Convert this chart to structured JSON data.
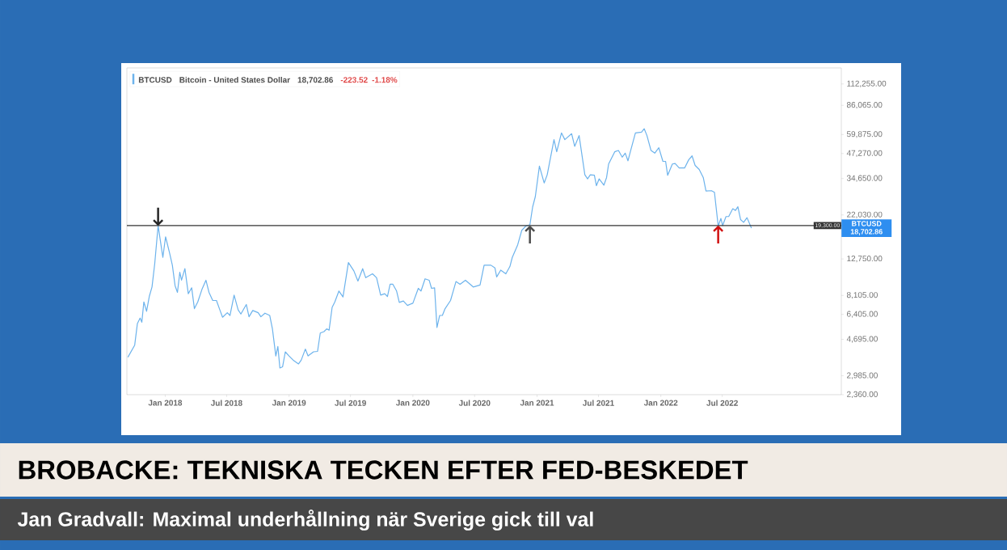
{
  "chart_data": {
    "type": "line",
    "title": "BROBACKE: TEKNISKA TECKEN EFTER FED-BESKEDET",
    "x": [
      "2017-09-13",
      "2017-10-03",
      "2017-10-11",
      "2017-10-19",
      "2017-10-24",
      "2017-10-30",
      "2017-11-07",
      "2017-11-15",
      "2017-11-23",
      "2017-12-01",
      "2017-12-11",
      "2017-12-25",
      "2018-01-02",
      "2018-01-14",
      "2018-01-22",
      "2018-01-30",
      "2018-02-06",
      "2018-02-13",
      "2018-02-18",
      "2018-02-28",
      "2018-03-10",
      "2018-03-20",
      "2018-03-28",
      "2018-04-07",
      "2018-04-19",
      "2018-05-01",
      "2018-05-10",
      "2018-05-21",
      "2018-06-01",
      "2018-06-11",
      "2018-06-19",
      "2018-07-03",
      "2018-07-11",
      "2018-07-23",
      "2018-08-04",
      "2018-08-12",
      "2018-08-28",
      "2018-09-05",
      "2018-09-16",
      "2018-10-02",
      "2018-10-10",
      "2018-10-22",
      "2018-11-05",
      "2018-11-13",
      "2018-11-23",
      "2018-11-29",
      "2018-12-05",
      "2018-12-13",
      "2018-12-21",
      "2019-01-01",
      "2019-01-13",
      "2019-01-29",
      "2019-02-06",
      "2019-02-18",
      "2019-02-26",
      "2019-03-14",
      "2019-03-26",
      "2019-04-03",
      "2019-04-14",
      "2019-04-22",
      "2019-04-29",
      "2019-05-08",
      "2019-05-16",
      "2019-05-28",
      "2019-06-09",
      "2019-06-25",
      "2019-07-11",
      "2019-07-23",
      "2019-08-06",
      "2019-08-15",
      "2019-09-04",
      "2019-09-16",
      "2019-09-28",
      "2019-10-10",
      "2019-10-18",
      "2019-10-26",
      "2019-11-03",
      "2019-11-14",
      "2019-11-22",
      "2019-12-04",
      "2019-12-16",
      "2020-01-01",
      "2020-01-17",
      "2020-01-25",
      "2020-02-06",
      "2020-02-18",
      "2020-02-25",
      "2020-03-05",
      "2020-03-12",
      "2020-03-20",
      "2020-03-28",
      "2020-04-05",
      "2020-04-21",
      "2020-04-29",
      "2020-05-07",
      "2020-05-19",
      "2020-06-04",
      "2020-06-27",
      "2020-07-17",
      "2020-07-29",
      "2020-08-18",
      "2020-08-30",
      "2020-09-04",
      "2020-09-16",
      "2020-10-01",
      "2020-10-13",
      "2020-10-20",
      "2020-11-05",
      "2020-11-17",
      "2020-11-29",
      "2020-12-11",
      "2020-12-19",
      "2020-12-27",
      "2021-01-08",
      "2021-01-22",
      "2021-01-31",
      "2021-02-20",
      "2021-02-28",
      "2021-03-14",
      "2021-03-24",
      "2021-04-13",
      "2021-04-22",
      "2021-05-05",
      "2021-05-22",
      "2021-05-30",
      "2021-06-07",
      "2021-06-19",
      "2021-06-25",
      "2021-07-03",
      "2021-07-17",
      "2021-07-25",
      "2021-07-31",
      "2021-08-18",
      "2021-08-29",
      "2021-09-09",
      "2021-09-18",
      "2021-09-26",
      "2021-10-04",
      "2021-10-18",
      "2021-11-05",
      "2021-11-13",
      "2021-11-21",
      "2021-12-03",
      "2021-12-14",
      "2021-12-26",
      "2022-01-07",
      "2022-01-15",
      "2022-01-21",
      "2022-02-04",
      "2022-02-12",
      "2022-02-24",
      "2022-03-12",
      "2022-03-24",
      "2022-04-03",
      "2022-04-12",
      "2022-04-24",
      "2022-05-06",
      "2022-05-14",
      "2022-05-30",
      "2022-06-08",
      "2022-06-19",
      "2022-06-27",
      "2022-07-02",
      "2022-07-12",
      "2022-07-20",
      "2022-08-01",
      "2022-08-09",
      "2022-08-16",
      "2022-08-24",
      "2022-09-02",
      "2022-09-12",
      "2022-09-25"
    ],
    "series": [
      {
        "name": "BTCUSD",
        "color": "#6db3ec",
        "values": [
          3760,
          4370,
          5720,
          6120,
          5810,
          7480,
          6650,
          8000,
          9000,
          12000,
          19300,
          13000,
          16800,
          13700,
          11800,
          9150,
          8420,
          10800,
          9790,
          11300,
          8280,
          8910,
          6880,
          7480,
          8710,
          9790,
          8420,
          7610,
          7610,
          6770,
          6180,
          6540,
          6320,
          8140,
          6770,
          6430,
          7240,
          6220,
          6720,
          6540,
          6220,
          6500,
          6320,
          5350,
          3820,
          4300,
          3290,
          3340,
          4020,
          3820,
          3630,
          3460,
          3630,
          4160,
          3820,
          4020,
          4040,
          5080,
          5170,
          5350,
          5260,
          6990,
          7480,
          8560,
          7950,
          12200,
          11000,
          9690,
          11300,
          10100,
          10600,
          10100,
          8140,
          8280,
          8000,
          9310,
          9310,
          8560,
          7430,
          7560,
          7160,
          7360,
          8850,
          8560,
          9960,
          9790,
          8850,
          8910,
          5440,
          6320,
          6320,
          6880,
          7610,
          8560,
          9630,
          9310,
          9790,
          9000,
          9220,
          11800,
          11800,
          11400,
          10200,
          11100,
          10600,
          11600,
          13000,
          15200,
          18200,
          19200,
          19500,
          24300,
          27700,
          40400,
          32800,
          36300,
          56200,
          48300,
          61100,
          56200,
          60500,
          51700,
          59100,
          36300,
          34500,
          36300,
          36100,
          31700,
          34500,
          31900,
          35100,
          41500,
          48300,
          49100,
          45200,
          47500,
          43200,
          49100,
          61100,
          61700,
          64300,
          59100,
          49100,
          47500,
          50800,
          42900,
          42900,
          36100,
          41500,
          41800,
          39500,
          39500,
          43700,
          45900,
          40800,
          38800,
          35100,
          29700,
          29800,
          29200,
          19200,
          21100,
          19300,
          21600,
          21600,
          23800,
          23300,
          24400,
          20800,
          20100,
          21300,
          18700
        ]
      }
    ],
    "xlim": [
      "2017-09-10",
      "2023-06-17"
    ],
    "ylim": [
      2360,
      137000
    ],
    "log": "y",
    "xticks": [
      {
        "value": "2018-01-01",
        "label": "Jan 2018"
      },
      {
        "value": "2018-07-01",
        "label": "Jul 2018"
      },
      {
        "value": "2019-01-01",
        "label": "Jan 2019"
      },
      {
        "value": "2019-07-01",
        "label": "Jul 2019"
      },
      {
        "value": "2020-01-01",
        "label": "Jan 2020"
      },
      {
        "value": "2020-07-01",
        "label": "Jul 2020"
      },
      {
        "value": "2021-01-01",
        "label": "Jan 2021"
      },
      {
        "value": "2021-07-01",
        "label": "Jul 2021"
      },
      {
        "value": "2022-01-01",
        "label": "Jan 2022"
      },
      {
        "value": "2022-07-01",
        "label": "Jul 2022"
      }
    ],
    "yticks": [
      {
        "value": 2360,
        "label": "2,360.00"
      },
      {
        "value": 2985,
        "label": "2,985.00"
      },
      {
        "value": 4695,
        "label": "4,695.00"
      },
      {
        "value": 6405,
        "label": "6,405.00"
      },
      {
        "value": 8105,
        "label": "8,105.00"
      },
      {
        "value": 12750,
        "label": "12,750.00"
      },
      {
        "value": 22030,
        "label": "22,030.00"
      },
      {
        "value": 34650,
        "label": "34,650.00"
      },
      {
        "value": 47270,
        "label": "47,270.00"
      },
      {
        "value": 59875,
        "label": "59,875.00"
      },
      {
        "value": 86065,
        "label": "86,065.00"
      },
      {
        "value": 112255,
        "label": "112,255.00"
      }
    ],
    "ref_lines": [
      {
        "axis": "y",
        "value": 19300,
        "label": "19,300.00",
        "color": "#333333"
      }
    ],
    "legend": "top left",
    "annotations": [
      "Bitcoin - United States Dollar",
      "18,702.86",
      "-223.52",
      "-1.18%",
      "BTCUSD 18,702.86",
      {
        "text": "↓",
        "x": "2017-12-11",
        "y": 19300
      },
      {
        "text": "↑",
        "x": "2020-12-11",
        "y": 19300
      },
      {
        "text": "↑",
        "x": "2022-06-19",
        "y": 19300
      },
      "Jan Gradvall: Maximal underhållning när Sverige gick till val"
    ]
  }
}
